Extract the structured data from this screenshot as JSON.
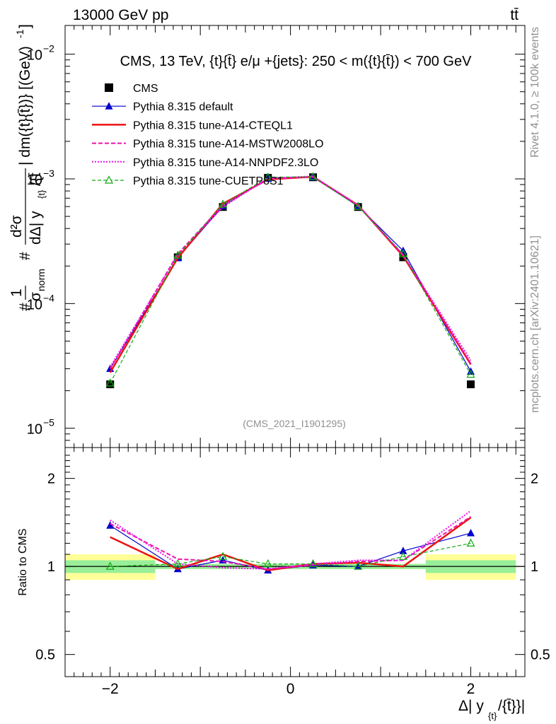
{
  "header": {
    "left": "13000 GeV pp",
    "right": "tt̄"
  },
  "side_labels": {
    "rivet": "Rivet 4.1.0, ≥ 100k events",
    "mcplots": "mcplots.cern.ch [arXiv:2401.10621]"
  },
  "colors": {
    "cms": "#000000",
    "default": "#0000cc",
    "cteql1": "#ee1111",
    "mstw": "#ee11aa",
    "nnpdf": "#ee11ee",
    "cuetp8s1": "#11aa11",
    "band_inner": "#99ee99",
    "band_outer": "#ffff99"
  },
  "chart_data": [
    {
      "type": "line",
      "panel": "main",
      "title": "CMS, 13 TeV, {t}{t̄} e/μ +{jets}: 250 < m({t}{t̄}) < 700 GeV",
      "watermark": "(CMS_2021_I1901295)",
      "ylabel_parts": {
        "frac1_num": "#",
        "frac1_den_main": "σ",
        "frac1_den_sub": "norm",
        "frac1_top": "1",
        "hash": "#",
        "frac2_num": "d²σ",
        "frac2_den": "dΔ| y",
        "frac2_den_sub": "{t}",
        "frac2_den_rest": "/{t̄",
        "tail": "| dm({t}{t̄})} [(GeV)",
        "tail_sup": "-1",
        "tail_end": "]"
      },
      "yscale": "log",
      "ylim": [
        7e-06,
        0.017
      ],
      "ytick_labels": [
        {
          "value": 1e-05,
          "base": "10",
          "exp": "−5"
        },
        {
          "value": 0.0001,
          "base": "10",
          "exp": "−4"
        },
        {
          "value": 0.001,
          "base": "10",
          "exp": "−3"
        },
        {
          "value": 0.01,
          "base": "10",
          "exp": "−2"
        }
      ],
      "xlim": [
        -2.5,
        2.6
      ],
      "x": [
        -2.0,
        -1.25,
        -0.75,
        -0.25,
        0.25,
        0.75,
        1.25,
        2.0
      ],
      "series": [
        {
          "key": "cms",
          "name": "CMS",
          "style": "data",
          "values": [
            2.25e-05,
            0.000235,
            0.000595,
            0.00102,
            0.00103,
            0.000595,
            0.000235,
            2.25e-05
          ]
        },
        {
          "key": "default",
          "name": "Pythia 8.315 default",
          "style": "solid-triangle",
          "values": [
            3e-05,
            0.000232,
            0.000605,
            0.001005,
            0.00103,
            0.000605,
            0.000265,
            2.85e-05
          ]
        },
        {
          "key": "cteql1",
          "name": "Pythia 8.315 tune-A14-CTEQL1",
          "style": "thick",
          "values": [
            2.8e-05,
            0.000232,
            0.000632,
            0.00099,
            0.00104,
            0.000615,
            0.00024,
            3.25e-05
          ]
        },
        {
          "key": "mstw",
          "name": "Pythia 8.315 tune-A14-MSTW2008LO",
          "style": "dashed",
          "values": [
            3e-05,
            0.00025,
            0.000615,
            0.001,
            0.00104,
            0.000615,
            0.000245,
            3.3e-05
          ]
        },
        {
          "key": "nnpdf",
          "name": "Pythia 8.315 tune-A14-NNPDF2.3LO",
          "style": "dotted",
          "values": [
            3.1e-05,
            0.000245,
            0.000595,
            0.00101,
            0.00105,
            0.000615,
            0.000245,
            3.5e-05
          ]
        },
        {
          "key": "cuetp8s1",
          "name": "Pythia 8.315 tune-CUETP8S1",
          "style": "dashed-open-triangle",
          "values": [
            2.3e-05,
            0.000243,
            0.000625,
            0.00103,
            0.00104,
            0.0006,
            0.00025,
            2.7e-05
          ]
        }
      ]
    },
    {
      "type": "line",
      "panel": "ratio",
      "ylabel": "Ratio to CMS",
      "yscale": "log",
      "ylim": [
        0.42,
        2.55
      ],
      "yticks": [
        0.5,
        1,
        2
      ],
      "ytick_labels": [
        "0.5",
        "1",
        "2"
      ],
      "xlabel_parts": {
        "main": "Δ| y",
        "sub": "{t}",
        "rest": "/{t̄}}|"
      },
      "xticks": [
        -2,
        0,
        2
      ],
      "xtick_labels": [
        "−2",
        "0",
        "2"
      ],
      "xlim": [
        -2.5,
        2.6
      ],
      "x": [
        -2.0,
        -1.25,
        -0.75,
        -0.25,
        0.25,
        0.75,
        1.25,
        2.0
      ],
      "band_edges": [
        -2.5,
        -1.5,
        1.5,
        2.5
      ],
      "band_inner": [
        0.05,
        0.02,
        0.05
      ],
      "band_outer": [
        0.1,
        0.02,
        0.1
      ],
      "series": [
        {
          "key": "default",
          "name": "Pythia 8.315 default",
          "values": [
            1.38,
            0.98,
            1.05,
            0.97,
            1.01,
            1.0,
            1.13,
            1.3
          ]
        },
        {
          "key": "cteql1",
          "name": "Pythia 8.315 tune-A14-CTEQL1",
          "values": [
            1.26,
            0.98,
            1.1,
            0.97,
            1.02,
            1.03,
            1.0,
            1.47
          ]
        },
        {
          "key": "mstw",
          "name": "Pythia 8.315 tune-A14-MSTW2008LO",
          "values": [
            1.4,
            1.06,
            1.04,
            0.98,
            1.01,
            1.04,
            1.05,
            1.48
          ]
        },
        {
          "key": "nnpdf",
          "name": "Pythia 8.315 tune-A14-NNPDF2.3LO",
          "values": [
            1.44,
            1.02,
            0.99,
            0.98,
            1.02,
            1.05,
            1.05,
            1.55
          ]
        },
        {
          "key": "cuetp8s1",
          "name": "Pythia 8.315 tune-CUETP8S1",
          "values": [
            1.0,
            1.02,
            1.08,
            1.02,
            1.02,
            1.0,
            1.08,
            1.2
          ]
        }
      ]
    }
  ]
}
